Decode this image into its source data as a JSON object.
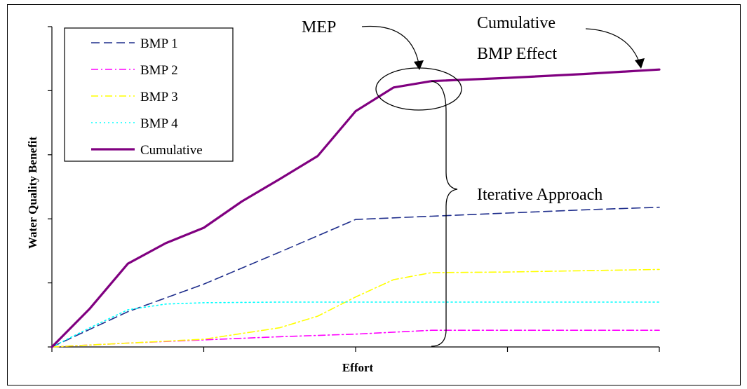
{
  "chart_data": {
    "type": "line",
    "title": "",
    "xlabel": "Effort",
    "ylabel": "Water Quality Benefit",
    "x_ticks": [
      0,
      1,
      2,
      3,
      4
    ],
    "y_ticks": [
      0,
      1,
      2,
      3,
      4,
      5
    ],
    "xlim": [
      0,
      4
    ],
    "ylim": [
      0,
      5
    ],
    "grid": false,
    "legend_placement": "top-left",
    "series": [
      {
        "name": "BMP 1",
        "color": "#1f2e8c",
        "dash": "dashed",
        "points": [
          [
            0,
            0
          ],
          [
            0.5,
            0.55
          ],
          [
            1,
            0.98
          ],
          [
            1.5,
            1.48
          ],
          [
            2,
            1.99
          ],
          [
            2.5,
            2.04
          ],
          [
            3,
            2.09
          ],
          [
            3.5,
            2.14
          ],
          [
            4,
            2.18
          ]
        ]
      },
      {
        "name": "BMP 2",
        "color": "#ff00ff",
        "dash": "dash-dot",
        "points": [
          [
            0,
            0
          ],
          [
            0.5,
            0.06
          ],
          [
            1,
            0.11
          ],
          [
            1.5,
            0.16
          ],
          [
            2,
            0.2
          ],
          [
            2.5,
            0.26
          ],
          [
            3,
            0.26
          ],
          [
            3.5,
            0.26
          ],
          [
            4,
            0.26
          ]
        ]
      },
      {
        "name": "BMP 3",
        "color": "#ffff00",
        "dash": "dash-dot",
        "points": [
          [
            0,
            0
          ],
          [
            0.5,
            0.06
          ],
          [
            1,
            0.12
          ],
          [
            1.5,
            0.3
          ],
          [
            1.75,
            0.48
          ],
          [
            2,
            0.78
          ],
          [
            2.25,
            1.05
          ],
          [
            2.5,
            1.16
          ],
          [
            3,
            1.17
          ],
          [
            3.5,
            1.19
          ],
          [
            4,
            1.21
          ]
        ]
      },
      {
        "name": "BMP 4",
        "color": "#00ffff",
        "dash": "dotted",
        "points": [
          [
            0,
            0
          ],
          [
            0.25,
            0.3
          ],
          [
            0.5,
            0.58
          ],
          [
            0.75,
            0.67
          ],
          [
            1,
            0.69
          ],
          [
            1.5,
            0.7
          ],
          [
            2,
            0.7
          ],
          [
            2.5,
            0.7
          ],
          [
            3,
            0.7
          ],
          [
            3.5,
            0.7
          ],
          [
            4,
            0.7
          ]
        ]
      },
      {
        "name": "Cumulative",
        "color": "#800080",
        "dash": "solid",
        "points": [
          [
            0,
            0
          ],
          [
            0.25,
            0.6
          ],
          [
            0.5,
            1.3
          ],
          [
            0.75,
            1.62
          ],
          [
            1,
            1.86
          ],
          [
            1.25,
            2.27
          ],
          [
            1.5,
            2.62
          ],
          [
            1.75,
            2.98
          ],
          [
            2,
            3.68
          ],
          [
            2.25,
            4.05
          ],
          [
            2.5,
            4.15
          ],
          [
            3,
            4.2
          ],
          [
            3.5,
            4.26
          ],
          [
            4,
            4.33
          ]
        ]
      }
    ],
    "annotations": [
      {
        "id": "mep",
        "text": "MEP"
      },
      {
        "id": "cumulative-bmp-effect",
        "lines": [
          "Cumulative",
          "BMP Effect"
        ]
      },
      {
        "id": "iterative-approach",
        "text": "Iterative Approach"
      }
    ]
  }
}
